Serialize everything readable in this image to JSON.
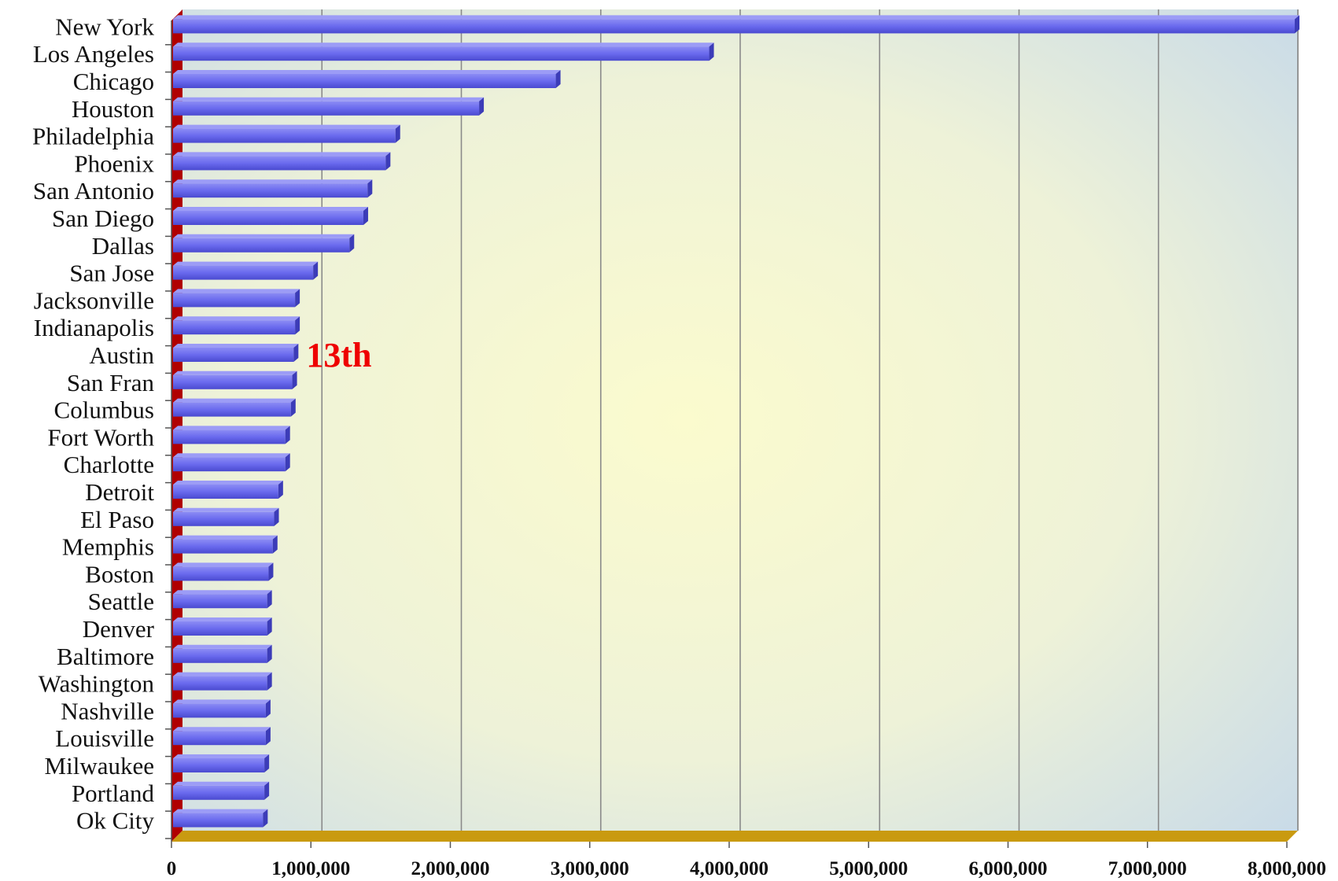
{
  "chart_data": {
    "type": "bar",
    "orientation": "horizontal",
    "title": "",
    "xlabel": "",
    "ylabel": "",
    "xlim": [
      0,
      8000000
    ],
    "grid": true,
    "legend": "none",
    "categories": [
      "New York",
      "Los Angeles",
      "Chicago",
      "Houston",
      "Philadelphia",
      "Phoenix",
      "San Antonio",
      "San Diego",
      "Dallas",
      "San Jose",
      "Jacksonville",
      "Indianapolis",
      "Austin",
      "San Fran",
      "Columbus",
      "Fort Worth",
      "Charlotte",
      "Detroit",
      "El Paso",
      "Memphis",
      "Boston",
      "Seattle",
      "Denver",
      "Baltimore",
      "Washington",
      "Nashville",
      "Louisville",
      "Milwaukee",
      "Portland",
      "Ok City"
    ],
    "values": [
      8000000,
      3800000,
      2700000,
      2150000,
      1550000,
      1480000,
      1350000,
      1320000,
      1220000,
      960000,
      830000,
      830000,
      820000,
      810000,
      800000,
      760000,
      760000,
      710000,
      680000,
      670000,
      640000,
      630000,
      630000,
      630000,
      630000,
      620000,
      620000,
      610000,
      610000,
      600000
    ],
    "tick_labels": [
      "0",
      "1,000,000",
      "2,000,000",
      "3,000,000",
      "4,000,000",
      "5,000,000",
      "6,000,000",
      "7,000,000",
      "8,000,000"
    ],
    "tick_values": [
      0,
      1000000,
      2000000,
      3000000,
      4000000,
      5000000,
      6000000,
      7000000,
      8000000
    ],
    "annotation": {
      "text": "13th",
      "category": "Austin",
      "color": "#ee0000"
    },
    "colors": {
      "bar": "#6a6aee",
      "bar_top": "#9c9cf6",
      "bar_dark": "#3c3cb8",
      "left_wall": "#b00000",
      "floor": "#c99a10",
      "gridline": "#8a8a8a",
      "bg_center": "#fbfbce",
      "bg_edge": "#c8dae8"
    }
  }
}
